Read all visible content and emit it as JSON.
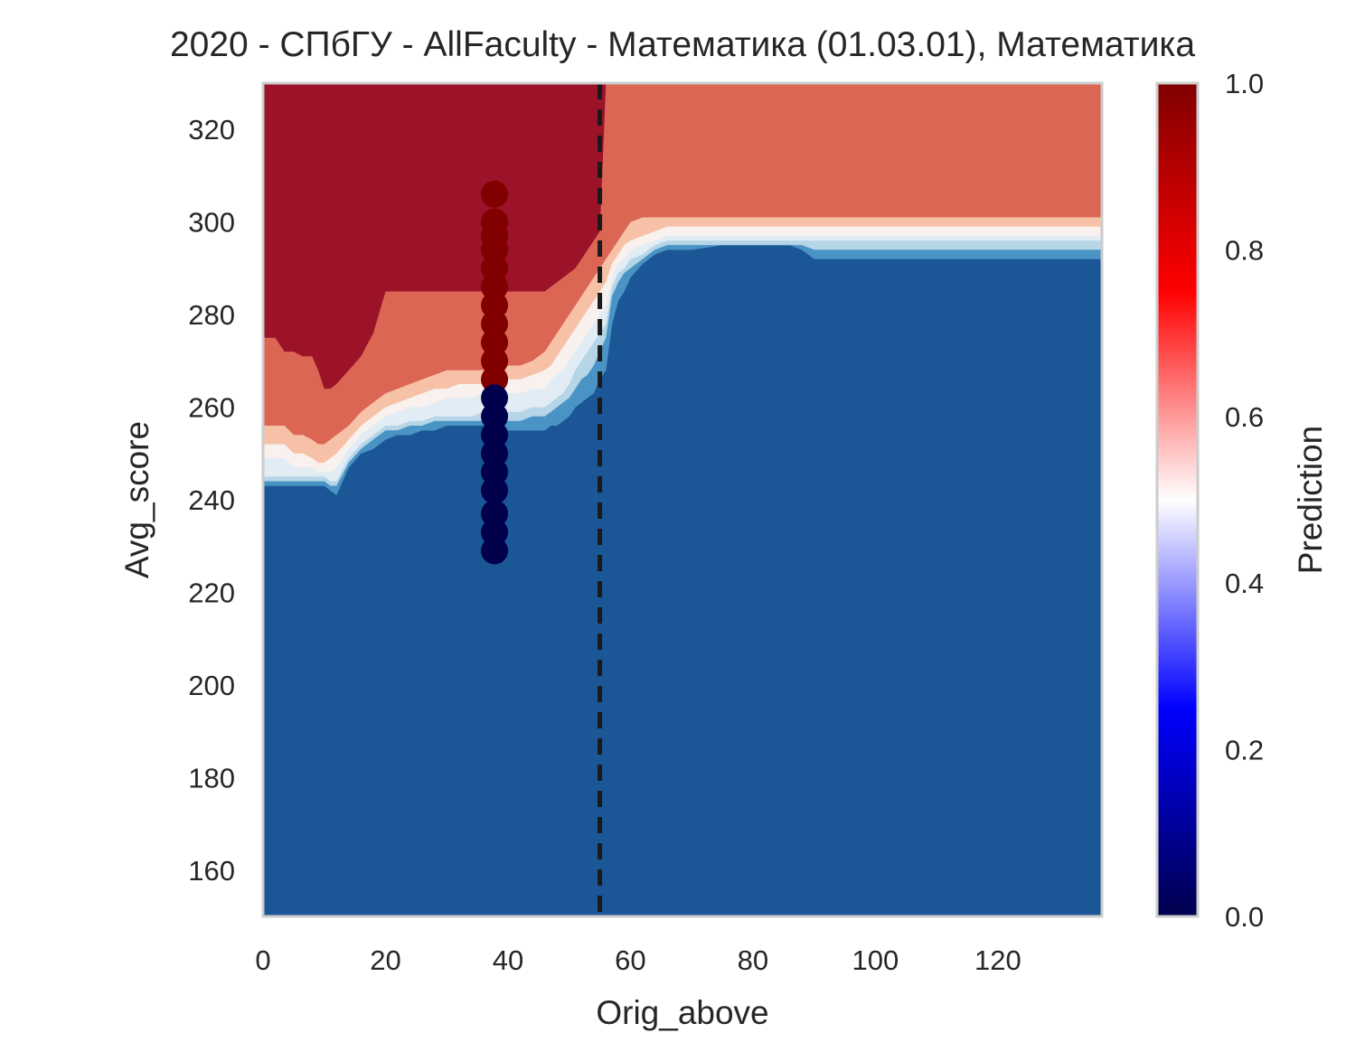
{
  "chart_data": {
    "type": "heatmap",
    "title": "2020 - СПбГУ - AllFaculty - Математика (01.03.01), Математика",
    "xlabel": "Orig_above",
    "ylabel": "Avg_score",
    "xlim": [
      0,
      137
    ],
    "ylim": [
      150,
      330
    ],
    "x_ticks": [
      "0",
      "20",
      "40",
      "60",
      "80",
      "100",
      "120"
    ],
    "x_tick_values": [
      0,
      20,
      40,
      60,
      80,
      100,
      120
    ],
    "y_ticks": [
      "160",
      "180",
      "200",
      "220",
      "240",
      "260",
      "280",
      "300",
      "320"
    ],
    "y_tick_values": [
      160,
      180,
      200,
      220,
      240,
      260,
      280,
      300,
      320
    ],
    "grid": false,
    "colorbar": {
      "label": "Prediction",
      "range": [
        0.0,
        1.0
      ],
      "ticks": [
        "0.0",
        "0.2",
        "0.4",
        "0.6",
        "0.8",
        "1.0"
      ],
      "tick_values": [
        0.0,
        0.2,
        0.4,
        0.6,
        0.8,
        1.0
      ],
      "colormap": "seismic"
    },
    "contour_levels": [
      {
        "range": "0.0-0.1",
        "color": "#1b5696"
      },
      {
        "range": "0.1-0.2",
        "color": "#4994c5"
      },
      {
        "range": "0.2-0.3",
        "color": "#6ea9d2"
      },
      {
        "range": "0.3-0.4",
        "color": "#b6d5e7"
      },
      {
        "range": "0.4-0.5",
        "color": "#e2ecf4"
      },
      {
        "range": "0.5-0.6",
        "color": "#f8f1ed"
      },
      {
        "range": "0.6-0.7",
        "color": "#f7c1a8"
      },
      {
        "range": "0.7-0.8",
        "color": "#da6653"
      },
      {
        "range": "0.8-1.0",
        "color": "#9b1229"
      }
    ],
    "contour_boundaries": {
      "x": [
        0,
        2,
        3.5,
        5,
        6.5,
        8,
        9,
        10,
        11,
        12,
        14,
        16,
        18,
        20,
        22,
        24,
        26,
        28,
        30,
        32,
        34,
        36,
        38,
        40,
        42,
        44,
        46,
        47,
        48,
        49,
        50,
        51,
        52,
        53,
        54,
        55,
        56,
        57,
        58,
        59,
        60,
        62,
        64,
        66,
        68,
        70,
        75,
        80,
        82,
        84,
        86,
        88,
        90,
        100,
        110,
        120,
        137
      ],
      "lines": [
        {
          "level": 0.1,
          "y": [
            243,
            243,
            243,
            243,
            243,
            243,
            243,
            243,
            242,
            241,
            247,
            250,
            251,
            253,
            254,
            254,
            255,
            255,
            256,
            256,
            256,
            256,
            256,
            255,
            255,
            255,
            255,
            256,
            256,
            257,
            258,
            260,
            261,
            262,
            263,
            266,
            268,
            278,
            283,
            285,
            288,
            291,
            293,
            294,
            294,
            294,
            295,
            295,
            295,
            295,
            295,
            294,
            292,
            292,
            292,
            292,
            292
          ]
        },
        {
          "level": 0.3,
          "y": [
            244,
            244,
            244,
            244,
            244,
            244,
            244,
            244,
            243,
            243,
            248,
            251,
            253,
            255,
            255,
            256,
            256,
            257,
            257,
            257,
            257,
            257,
            257,
            257,
            257,
            258,
            258,
            259,
            260,
            261,
            262,
            264,
            266,
            267,
            269,
            272,
            275,
            284,
            287,
            289,
            290,
            292,
            294,
            295,
            295,
            295,
            295,
            295,
            295,
            295,
            295,
            295,
            294,
            294,
            294,
            294,
            294
          ]
        },
        {
          "level": 0.4,
          "y": [
            245,
            245,
            245,
            245,
            245,
            245,
            245,
            245,
            244,
            244,
            249,
            252,
            254,
            256,
            256,
            257,
            257,
            258,
            258,
            258,
            258,
            259,
            259,
            259,
            259,
            260,
            260,
            261,
            262,
            263,
            265,
            268,
            270,
            272,
            274,
            276,
            278,
            286,
            289,
            290,
            292,
            293,
            295,
            296,
            296,
            296,
            296,
            296,
            296,
            296,
            296,
            296,
            296,
            296,
            296,
            296,
            296
          ]
        },
        {
          "level": 0.5,
          "y": [
            249,
            249,
            249,
            247,
            247,
            247,
            246,
            246,
            246,
            247,
            251,
            254,
            256,
            258,
            259,
            260,
            260,
            261,
            262,
            262,
            262,
            263,
            263,
            263,
            263,
            264,
            264,
            266,
            267,
            268,
            270,
            272,
            274,
            276,
            278,
            280,
            282,
            288,
            291,
            292,
            294,
            295,
            296,
            297,
            297,
            297,
            297,
            297,
            297,
            297,
            297,
            297,
            297,
            297,
            297,
            297,
            297
          ]
        },
        {
          "level": 0.6,
          "y": [
            252,
            252,
            252,
            250,
            250,
            249,
            248,
            248,
            249,
            250,
            253,
            256,
            258,
            260,
            261,
            262,
            263,
            264,
            264,
            265,
            265,
            265,
            266,
            266,
            266,
            267,
            268,
            269,
            271,
            273,
            275,
            277,
            279,
            281,
            283,
            285,
            287,
            291,
            293,
            295,
            296,
            297,
            298,
            299,
            299,
            299,
            299,
            299,
            299,
            299,
            299,
            299,
            299,
            299,
            299,
            299,
            299
          ]
        },
        {
          "level": 0.7,
          "y": [
            256,
            256,
            256,
            254,
            254,
            253,
            252,
            252,
            253,
            254,
            256,
            259,
            261,
            263,
            264,
            265,
            266,
            267,
            268,
            268,
            268,
            268,
            268,
            269,
            269,
            270,
            272,
            274,
            276,
            278,
            280,
            282,
            284,
            286,
            288,
            290,
            292,
            294,
            296,
            298,
            300,
            301,
            301,
            301,
            301,
            301,
            301,
            301,
            301,
            301,
            301,
            301,
            301,
            301,
            301,
            301,
            301
          ]
        },
        {
          "level": 0.8,
          "y": [
            275,
            275,
            272,
            272,
            271,
            271,
            268,
            264,
            264,
            265,
            268,
            271,
            276,
            285,
            285,
            285,
            285,
            285,
            285,
            285,
            285,
            285,
            285,
            285,
            285,
            285,
            285,
            286,
            287,
            288,
            289,
            290,
            292,
            294,
            296,
            298,
            330,
            330,
            330,
            330,
            330,
            330,
            330,
            330,
            330,
            330,
            330,
            330,
            330,
            330,
            330,
            330,
            330,
            330,
            330,
            330,
            330
          ]
        }
      ]
    },
    "scatter_points": [
      {
        "x": 37.8,
        "y": 306,
        "value": 1
      },
      {
        "x": 37.8,
        "y": 300,
        "value": 1
      },
      {
        "x": 37.8,
        "y": 297,
        "value": 1
      },
      {
        "x": 37.8,
        "y": 294,
        "value": 1
      },
      {
        "x": 37.8,
        "y": 290,
        "value": 1
      },
      {
        "x": 37.8,
        "y": 286,
        "value": 1
      },
      {
        "x": 37.8,
        "y": 282,
        "value": 1
      },
      {
        "x": 37.8,
        "y": 278,
        "value": 1
      },
      {
        "x": 37.8,
        "y": 274,
        "value": 1
      },
      {
        "x": 37.8,
        "y": 270,
        "value": 1
      },
      {
        "x": 37.8,
        "y": 266,
        "value": 1
      },
      {
        "x": 37.8,
        "y": 262,
        "value": 0
      },
      {
        "x": 37.8,
        "y": 258,
        "value": 0
      },
      {
        "x": 37.8,
        "y": 254,
        "value": 0
      },
      {
        "x": 37.8,
        "y": 250,
        "value": 0
      },
      {
        "x": 37.8,
        "y": 246,
        "value": 0
      },
      {
        "x": 37.8,
        "y": 242,
        "value": 0
      },
      {
        "x": 37.8,
        "y": 237,
        "value": 0
      },
      {
        "x": 37.8,
        "y": 233,
        "value": 0
      },
      {
        "x": 37.8,
        "y": 229,
        "value": 0
      }
    ],
    "reference_line": {
      "orientation": "vertical",
      "x": 55,
      "style": "dashed",
      "color": "#1a1a1a"
    }
  }
}
